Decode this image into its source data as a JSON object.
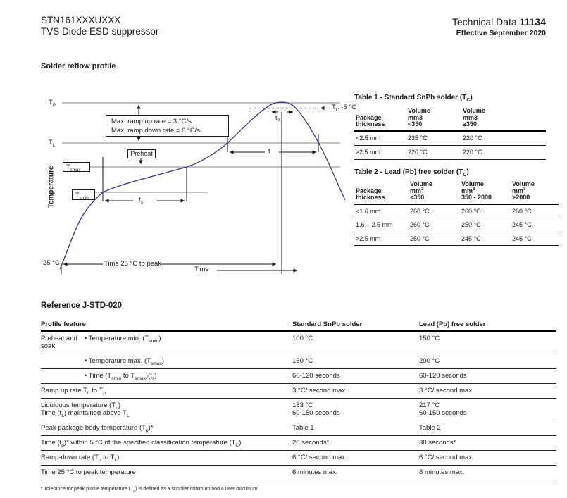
{
  "header": {
    "part_number": "STN161XXXUXXX",
    "product": "TVS Diode ESD suppressor",
    "doc_type": "Technical Data ",
    "doc_number": "11134",
    "effective_date": "Effective September 2020"
  },
  "sections": {
    "solder_title": "Solder reflow profile",
    "reference_title": "Reference J-STD-020"
  },
  "diagram": {
    "y_axis_label": "Temperature",
    "x_axis_label": "Time",
    "labels": {
      "tp": "T~P~",
      "tl": "T~L~",
      "tsmax": "T~smax~",
      "tsmin": "T~smin~",
      "ts": "t~s~",
      "t": "t",
      "tp_time": "t~P~",
      "tc_minus5": "T~C~ -5 °C",
      "start_temp": "25 °C",
      "time_to_peak": "Time 25 °C to peak",
      "preheat": "Preheat",
      "ramp_up": "Max. ramp up rate = 3 °C/s",
      "ramp_down": "Max. ramp down rate = 6 °C/s"
    },
    "colors": {
      "curve": "#333399",
      "guides": "#808080"
    }
  },
  "table1": {
    "title": "Table 1 - Standard SnPb solder (T~C~)",
    "columns": [
      "Package\nthickness",
      "Volume\nmm3\n<350",
      "Volume\nmm3\n≥350"
    ],
    "rows": [
      [
        "<2.5 mm",
        "235 °C",
        "220 °C"
      ],
      [
        "≥2.5 mm",
        "220 °C",
        "220 °C"
      ]
    ]
  },
  "table2": {
    "title": "Table 2 - Lead (Pb) free solder (T~C~)",
    "columns": [
      "Package\nthickness",
      "Volume\nmm^3^\n<350",
      "Volume\nmm^3^\n350 - 2000",
      "Volume\nmm^3^\n>2000"
    ],
    "rows": [
      [
        "<1.6 mm",
        "260 °C",
        "260 °C",
        "260 °C"
      ],
      [
        "1.6 – 2.5 mm",
        "260 °C",
        "250 °C",
        "245 °C"
      ],
      [
        ">2.5 mm",
        "250 °C",
        "245 °C",
        "245 °C"
      ]
    ]
  },
  "reference": {
    "columns": [
      "Profile feature",
      "Standard SnPb solder",
      "Lead (Pb) free solder"
    ],
    "rows": [
      {
        "group": "Preheat and soak",
        "feature": "• Temperature min. (T~smin~)",
        "snpb": "100 °C",
        "pbfree": "150 °C"
      },
      {
        "group": "",
        "feature": "• Temperature max. (T~smax~)",
        "snpb": "150 °C",
        "pbfree": "200 °C"
      },
      {
        "group": "",
        "feature": "• Time (T~smin~ to T~smax~)(t~s~)",
        "snpb": "60-120 seconds",
        "pbfree": "60-120 seconds"
      },
      {
        "feature": "Ramp up rate T~L~ to T~p~",
        "snpb": "3 °C/ second max.",
        "pbfree": "3 °C/ second max."
      },
      {
        "feature": "Liquidous temperature (T~L~)\nTime (t~L~) maintained above T~L~",
        "snpb": "183 °C\n60-150 seconds",
        "pbfree": "217 °C\n60-150 seconds"
      },
      {
        "feature": "Peak package body temperature (T~p~)*",
        "snpb": "Table 1",
        "pbfree": "Table 2"
      },
      {
        "feature": "Time (t~p~)* within 5 °C of the specified classification temperature (T~C~)",
        "snpb": "20 seconds*",
        "pbfree": "30 seconds*"
      },
      {
        "feature": "Ramp-down rate (T~p~ to T~L~)",
        "snpb": "6 °C/ second max.",
        "pbfree": "6 °C/ second max."
      },
      {
        "feature": "Time 25 °C to peak temperature",
        "snpb": "6 minutes max.",
        "pbfree": "8 minutes max."
      }
    ]
  },
  "footnote": "* Tolerance for peak profile temperature (T~p~) is defined as a supplier minimum and a user maximum."
}
